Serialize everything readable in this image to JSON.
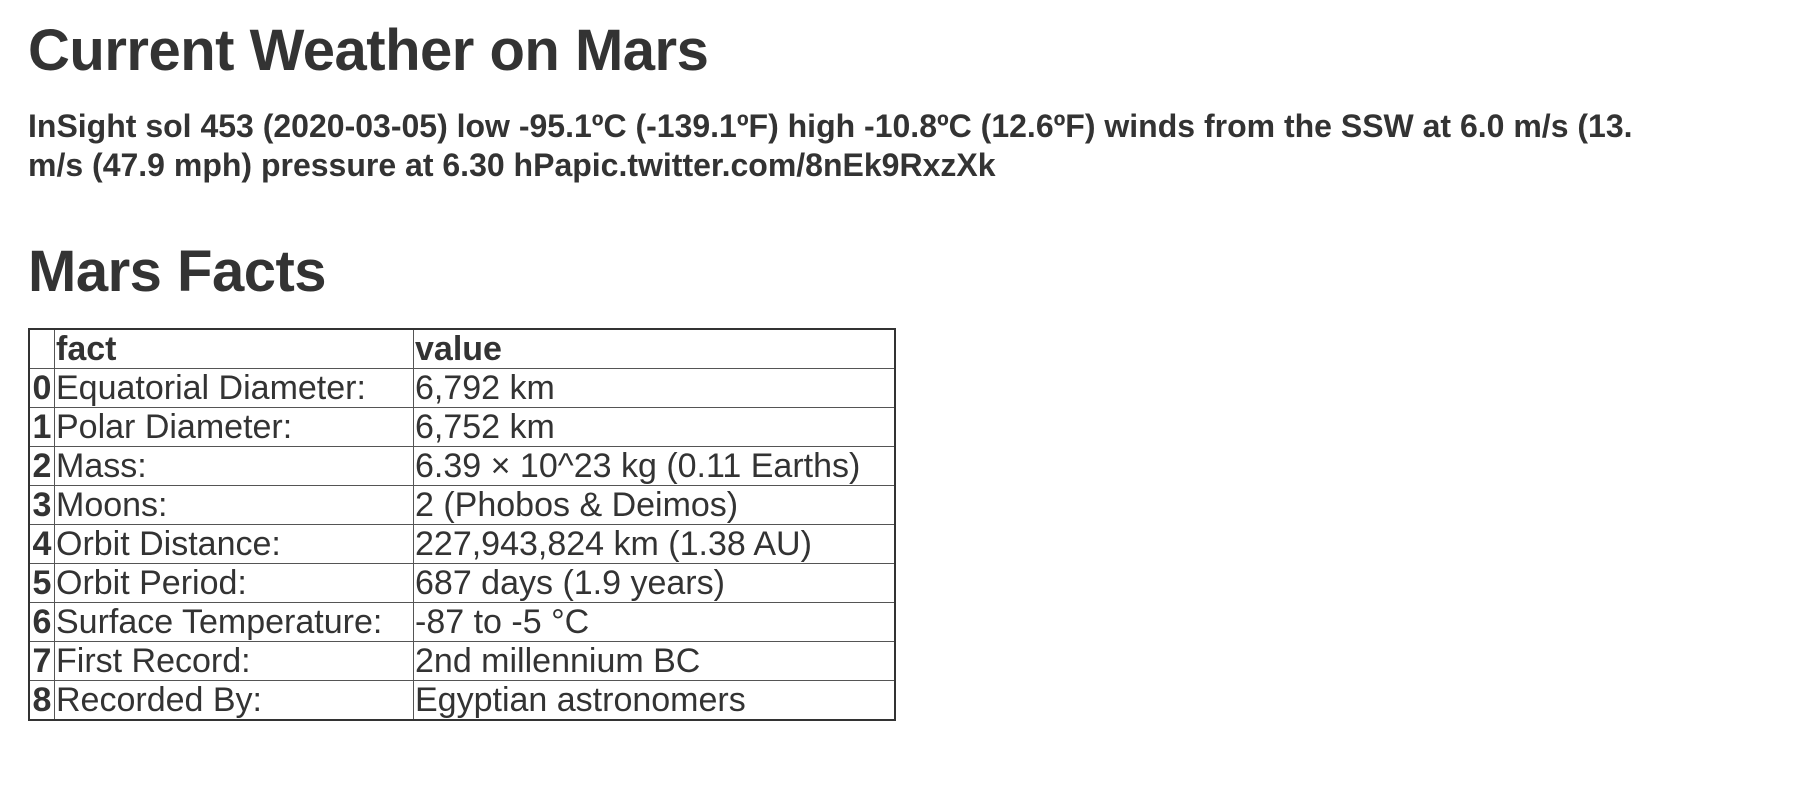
{
  "weather": {
    "heading": "Current Weather on Mars",
    "line1": "InSight sol 453 (2020-03-05) low -95.1ºC (-139.1ºF) high -10.8ºC (12.6ºF) winds from the SSW at 6.0 m/s (13.",
    "line2": "m/s (47.9 mph) pressure at 6.30 hPapic.twitter.com/8nEk9RxzXk"
  },
  "facts": {
    "heading": "Mars Facts",
    "columns": [
      "",
      "fact",
      "value"
    ],
    "rows": [
      {
        "index": "0",
        "fact": "Equatorial Diameter:",
        "value": "6,792 km"
      },
      {
        "index": "1",
        "fact": "Polar Diameter:",
        "value": "6,752 km"
      },
      {
        "index": "2",
        "fact": "Mass:",
        "value": "6.39 × 10^23 kg (0.11 Earths)"
      },
      {
        "index": "3",
        "fact": "Moons:",
        "value": "2 (Phobos & Deimos)"
      },
      {
        "index": "4",
        "fact": "Orbit Distance:",
        "value": "227,943,824 km (1.38 AU)"
      },
      {
        "index": "5",
        "fact": "Orbit Period:",
        "value": "687 days (1.9 years)"
      },
      {
        "index": "6",
        "fact": "Surface Temperature:",
        "value": "-87 to -5 °C"
      },
      {
        "index": "7",
        "fact": "First Record:",
        "value": "2nd millennium BC"
      },
      {
        "index": "8",
        "fact": "Recorded By:",
        "value": "Egyptian astronomers"
      }
    ]
  }
}
